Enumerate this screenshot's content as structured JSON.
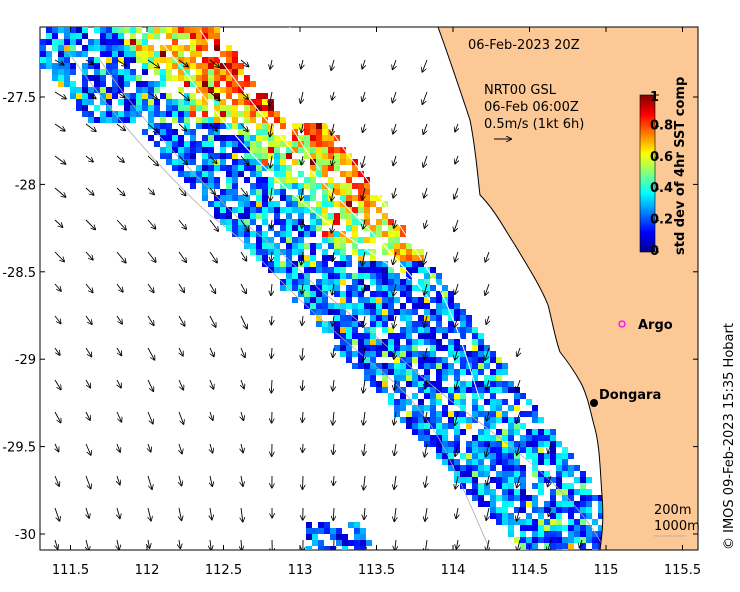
{
  "map": {
    "timestamp_label": "06-Feb-2023 20Z",
    "current_info": {
      "line1": "NRT00 GSL",
      "line2": "06-Feb 06:00Z",
      "line3": "0.5m/s (1kt 6h)"
    },
    "colorbar": {
      "title": "std dev of 4hr SST comp",
      "ticks": [
        "0",
        "0.2",
        "0.4",
        "0.6",
        "0.8",
        "1"
      ]
    },
    "x_ticks": [
      "111.5",
      "112",
      "112.5",
      "113",
      "113.5",
      "114",
      "114.5",
      "115",
      "115.5"
    ],
    "y_ticks": [
      "-27.5",
      "-28",
      "-28.5",
      "-29",
      "-29.5",
      "-30"
    ],
    "places": [
      {
        "name": "Argo",
        "lon": 114.95,
        "lat": -28.85
      },
      {
        "name": "Dongara",
        "lon": 114.93,
        "lat": -29.25
      }
    ],
    "legend": {
      "depth1": "200m",
      "depth2": "1000m"
    },
    "credit": "© IMOS 09-Feb-2023 15:35 Hobart",
    "colors": {
      "land": "#fcc895",
      "arrow": "#000000",
      "argo_marker": "#ff00ff",
      "bathymetry": "#aaaaaa"
    }
  }
}
